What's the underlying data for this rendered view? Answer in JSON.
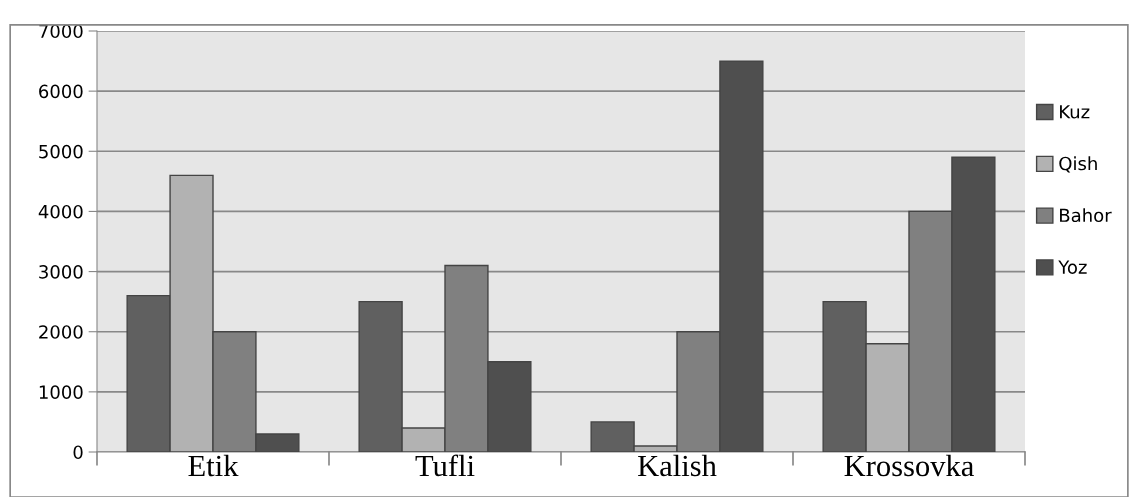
{
  "chart_data": {
    "type": "bar",
    "categories": [
      "Etik",
      "Tufli",
      "Kalish",
      "Krossovka"
    ],
    "series": [
      {
        "name": "Kuz",
        "color": "#606060",
        "values": [
          2600,
          2500,
          500,
          2500
        ]
      },
      {
        "name": "Qish",
        "color": "#b2b2b2",
        "values": [
          4600,
          400,
          100,
          1800
        ]
      },
      {
        "name": "Bahor",
        "color": "#808080",
        "values": [
          2000,
          3100,
          2000,
          4000
        ]
      },
      {
        "name": "Yoz",
        "color": "#4f4f4f",
        "values": [
          300,
          1500,
          6500,
          4900
        ]
      }
    ],
    "ylim": [
      0,
      7000
    ],
    "yticks": [
      0,
      1000,
      2000,
      3000,
      4000,
      5000,
      6000,
      7000
    ],
    "grid": "y",
    "legend": "right"
  }
}
